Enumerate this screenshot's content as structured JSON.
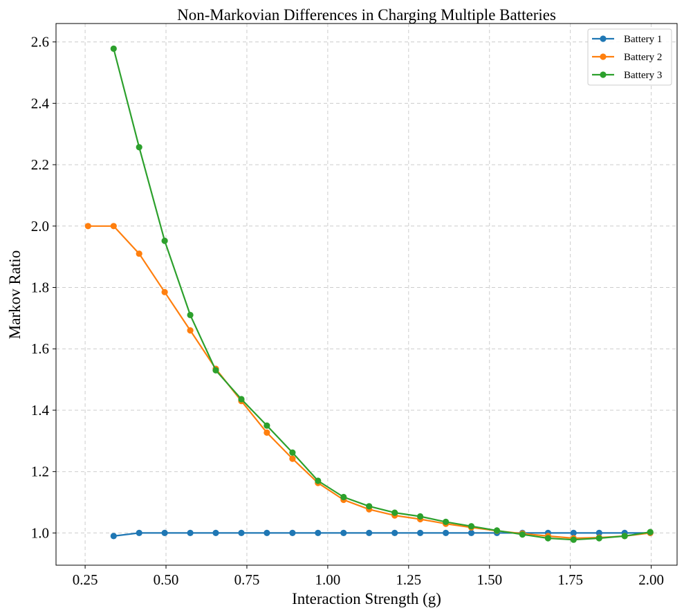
{
  "chart_data": {
    "type": "line",
    "title": "Non-Markovian Differences in Charging Multiple Batteries",
    "xlabel": "Interaction Strength (g)",
    "ylabel": "Markov Ratio",
    "xlim": [
      0.16,
      2.08
    ],
    "ylim": [
      0.895,
      2.66
    ],
    "xticks": [
      0.25,
      0.5,
      0.75,
      1.0,
      1.25,
      1.5,
      1.75,
      2.0
    ],
    "xtick_labels": [
      "0.25",
      "0.50",
      "0.75",
      "1.00",
      "1.25",
      "1.50",
      "1.75",
      "2.00"
    ],
    "yticks": [
      1.0,
      1.2,
      1.4,
      1.6,
      1.8,
      2.0,
      2.2,
      2.4,
      2.6
    ],
    "ytick_labels": [
      "1.0",
      "1.2",
      "1.4",
      "1.6",
      "1.8",
      "2.0",
      "2.2",
      "2.4",
      "2.6"
    ],
    "grid": true,
    "legend_position": "top-right",
    "series": [
      {
        "name": "Battery 1",
        "color": "#1f77b4",
        "x": [
          0.338,
          0.417,
          0.496,
          0.575,
          0.654,
          0.733,
          0.812,
          0.891,
          0.97,
          1.049,
          1.128,
          1.207,
          1.286,
          1.365,
          1.444,
          1.523,
          1.602,
          1.681,
          1.76,
          1.839,
          1.918,
          1.997
        ],
        "y": [
          0.99,
          1.0,
          1.0,
          1.0,
          1.0,
          1.0,
          1.0,
          1.0,
          1.0,
          1.0,
          1.0,
          1.0,
          1.0,
          1.0,
          1.0,
          1.0,
          1.0,
          1.0,
          1.0,
          1.0,
          1.0,
          1.0
        ]
      },
      {
        "name": "Battery 2",
        "color": "#ff7f0e",
        "x": [
          0.259,
          0.338,
          0.417,
          0.496,
          0.575,
          0.654,
          0.733,
          0.812,
          0.891,
          0.97,
          1.049,
          1.128,
          1.207,
          1.286,
          1.365,
          1.444,
          1.523,
          1.602,
          1.681,
          1.76,
          1.839,
          1.918,
          1.997
        ],
        "y": [
          2.0,
          2.0,
          1.91,
          1.785,
          1.66,
          1.535,
          1.43,
          1.327,
          1.242,
          1.163,
          1.108,
          1.077,
          1.057,
          1.045,
          1.03,
          1.018,
          1.007,
          0.998,
          0.99,
          0.983,
          0.985,
          0.99,
          1.0
        ]
      },
      {
        "name": "Battery 3",
        "color": "#2ca02c",
        "x": [
          0.338,
          0.417,
          0.496,
          0.575,
          0.654,
          0.733,
          0.812,
          0.891,
          0.97,
          1.049,
          1.128,
          1.207,
          1.286,
          1.365,
          1.444,
          1.523,
          1.602,
          1.681,
          1.76,
          1.839,
          1.918,
          1.997
        ],
        "y": [
          2.578,
          2.257,
          1.952,
          1.71,
          1.53,
          1.436,
          1.35,
          1.262,
          1.17,
          1.117,
          1.087,
          1.066,
          1.054,
          1.036,
          1.022,
          1.008,
          0.995,
          0.983,
          0.978,
          0.983,
          0.99,
          1.003
        ]
      }
    ]
  }
}
